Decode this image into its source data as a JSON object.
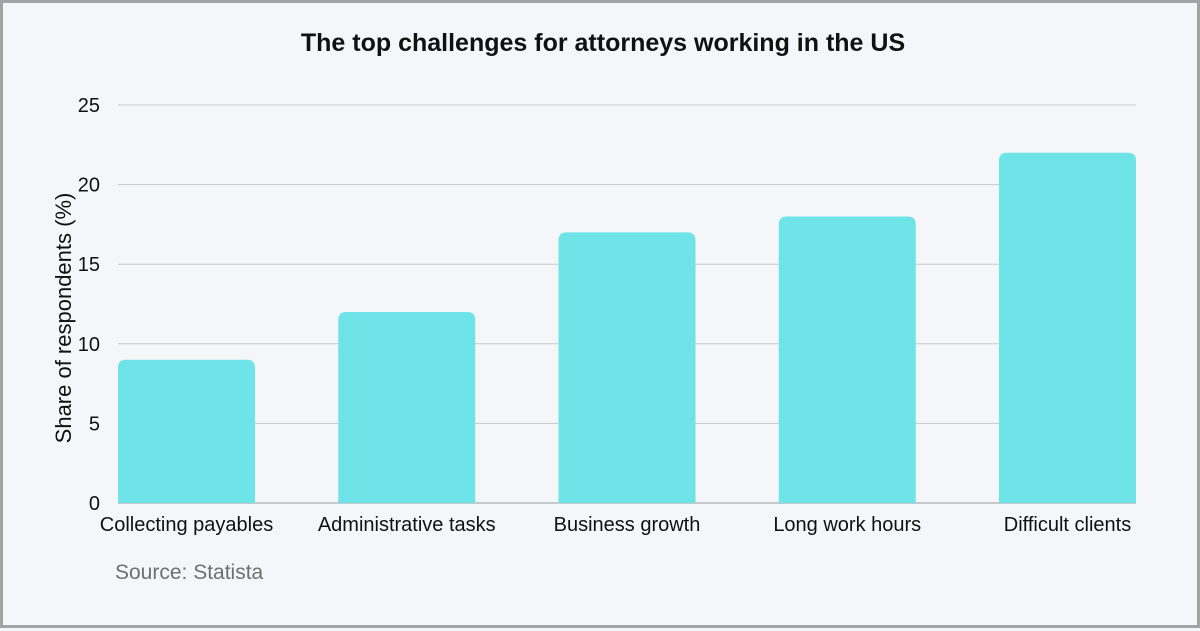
{
  "chart_data": {
    "type": "bar",
    "title": "The top challenges for attorneys working in the US",
    "xlabel": "",
    "ylabel": "Share of respondents (%)",
    "categories": [
      "Collecting payables",
      "Administrative tasks",
      "Business growth",
      "Long work hours",
      "Difficult clients"
    ],
    "values": [
      9,
      12,
      17,
      18,
      22
    ],
    "ylim": [
      0,
      25
    ],
    "yticks": [
      0,
      5,
      10,
      15,
      20,
      25
    ],
    "grid": true,
    "legend": "none",
    "bar_color": "#6ee4e8",
    "grid_color": "#c9c9c9"
  },
  "source": "Source: Statista"
}
